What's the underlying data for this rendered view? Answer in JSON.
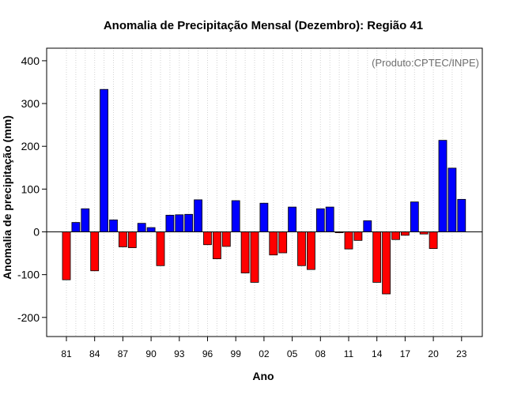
{
  "chart_data": {
    "type": "bar",
    "title": "Anomalia de Precipitação Mensal (Dezembro): Região 41",
    "xlabel": "Ano",
    "ylabel": "Anomalia de precipitação (mm)",
    "credit": "(Produto:CPTEC/INPE)",
    "ylim": [
      -250,
      430
    ],
    "yticks": [
      -200,
      -100,
      0,
      100,
      200,
      300,
      400
    ],
    "x_tick_labels": [
      "81",
      "84",
      "87",
      "90",
      "93",
      "96",
      "99",
      "02",
      "05",
      "08",
      "11",
      "14",
      "17",
      "20",
      "23"
    ],
    "categories": [
      "81",
      "82",
      "83",
      "84",
      "85",
      "86",
      "87",
      "88",
      "89",
      "90",
      "91",
      "92",
      "93",
      "94",
      "95",
      "96",
      "97",
      "98",
      "99",
      "00",
      "01",
      "02",
      "03",
      "04",
      "05",
      "06",
      "07",
      "08",
      "09",
      "10",
      "11",
      "12",
      "13",
      "14",
      "15",
      "16",
      "17",
      "18",
      "19",
      "20",
      "21",
      "22",
      "23"
    ],
    "values": [
      -112,
      22,
      54,
      -91,
      333,
      28,
      -35,
      -37,
      20,
      10,
      -79,
      39,
      40,
      41,
      75,
      -30,
      -63,
      -34,
      73,
      -96,
      -118,
      67,
      -54,
      -49,
      58,
      -79,
      -88,
      54,
      58,
      -2,
      -40,
      -20,
      26,
      -118,
      -145,
      -18,
      -8,
      70,
      -5,
      -39,
      214,
      149,
      76
    ],
    "colors": {
      "positive": "#0000ff",
      "negative": "#ff0000",
      "grid": "#d3d3d3",
      "zero": "#000000"
    },
    "grid": true
  }
}
